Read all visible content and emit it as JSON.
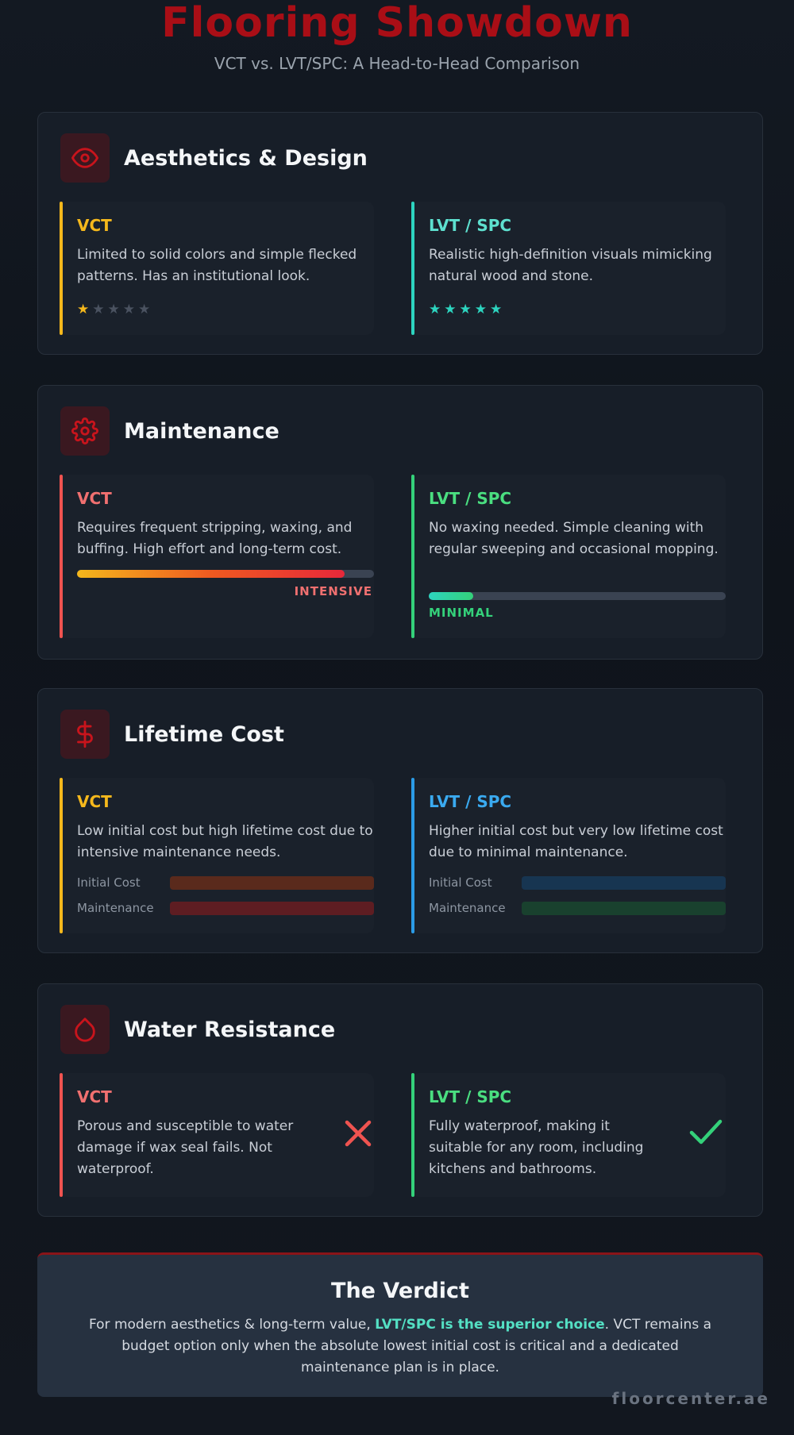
{
  "header": {
    "title": "Flooring Showdown",
    "subtitle": "VCT vs. LVT/SPC: A Head-to-Head Comparison"
  },
  "sections": [
    {
      "title": "Aesthetics & Design",
      "icon": "eye-icon",
      "vct": {
        "label": "VCT",
        "text": "Limited to solid colors and simple flecked patterns. Has an institutional look.",
        "rating": 1,
        "rating_max": 5,
        "accent": "#f5b81c"
      },
      "lvt": {
        "label": "LVT / SPC",
        "text": "Realistic high-definition visuals mimicking natural wood and stone.",
        "rating": 5,
        "rating_max": 5,
        "accent": "#2dd4bf"
      }
    },
    {
      "title": "Maintenance",
      "icon": "gear-icon",
      "vct": {
        "label": "VCT",
        "text": "Requires frequent stripping, waxing, and buffing. High effort and long-term cost.",
        "level": 0.9,
        "level_label": "INTENSIVE",
        "accent": "#ef5350"
      },
      "lvt": {
        "label": "LVT / SPC",
        "text": "No waxing needed. Simple cleaning with regular sweeping and occasional mopping.",
        "level": 0.15,
        "level_label": "MINIMAL",
        "accent": "#34d17a"
      }
    },
    {
      "title": "Lifetime Cost",
      "icon": "dollar-icon",
      "vct": {
        "label": "VCT",
        "text": "Low initial cost but high lifetime cost due to intensive maintenance needs.",
        "bars": [
          {
            "label": "Initial Cost",
            "color": "#5a2a1c"
          },
          {
            "label": "Maintenance",
            "color": "#5e1d22"
          }
        ],
        "accent": "#f5b81c"
      },
      "lvt": {
        "label": "LVT / SPC",
        "text": "Higher initial cost but very low lifetime cost due to minimal maintenance.",
        "bars": [
          {
            "label": "Initial Cost",
            "color": "#173551"
          },
          {
            "label": "Maintenance",
            "color": "#19412e"
          }
        ],
        "accent": "#2b9be6"
      }
    },
    {
      "title": "Water Resistance",
      "icon": "droplet-icon",
      "vct": {
        "label": "VCT",
        "text": "Porous and susceptible to water damage if wax seal fails. Not waterproof.",
        "status": "cross-icon",
        "accent": "#ef5350"
      },
      "lvt": {
        "label": "LVT / SPC",
        "text": "Fully waterproof, making it suitable for any room, including kitchens and bathrooms.",
        "status": "check-icon",
        "accent": "#34d17a"
      }
    }
  ],
  "verdict": {
    "title": "The Verdict",
    "text_before": "For modern aesthetics & long-term value, ",
    "highlight": "LVT/SPC is the superior choice",
    "text_after": ". VCT remains a budget option only when the absolute lowest initial cost is critical and a dedicated maintenance plan is in place."
  },
  "brand": "floorcenter.ae",
  "colors": {
    "title_red": "#a90e16",
    "icon_red": "#c8141c",
    "highlight_teal": "#54e0c4"
  }
}
